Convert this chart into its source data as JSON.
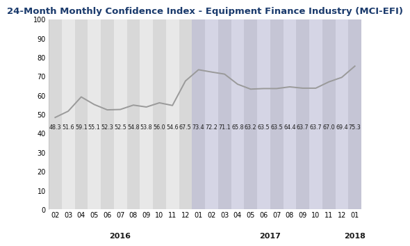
{
  "title": "24-Month Monthly Confidence Index - Equipment Finance Industry (MCI-EFI)",
  "values": [
    48.3,
    51.6,
    59.1,
    55.1,
    52.3,
    52.5,
    54.8,
    53.8,
    56.0,
    54.6,
    67.5,
    73.4,
    72.2,
    71.1,
    65.8,
    63.2,
    63.5,
    63.5,
    64.4,
    63.7,
    63.7,
    67.0,
    69.4,
    75.3
  ],
  "month_labels": [
    "02",
    "03",
    "04",
    "05",
    "06",
    "07",
    "08",
    "09",
    "10",
    "11",
    "12",
    "01",
    "02",
    "03",
    "04",
    "05",
    "06",
    "07",
    "08",
    "09",
    "10",
    "11",
    "12",
    "01"
  ],
  "ylim": [
    0,
    100
  ],
  "yticks": [
    0,
    10,
    20,
    30,
    40,
    50,
    60,
    70,
    80,
    90,
    100
  ],
  "line_color": "#9a9a9a",
  "line_width": 1.4,
  "title_color": "#1a3a6c",
  "title_fontsize": 9.5,
  "annotation_fontsize": 5.8,
  "tick_fontsize": 7.0,
  "year_fontsize": 8.0,
  "bg_2016_a": "#d8d8d8",
  "bg_2016_b": "#e8e8e8",
  "bg_2017_a": "#c5c5d5",
  "bg_2017_b": "#d5d5e5",
  "num_points": 24
}
